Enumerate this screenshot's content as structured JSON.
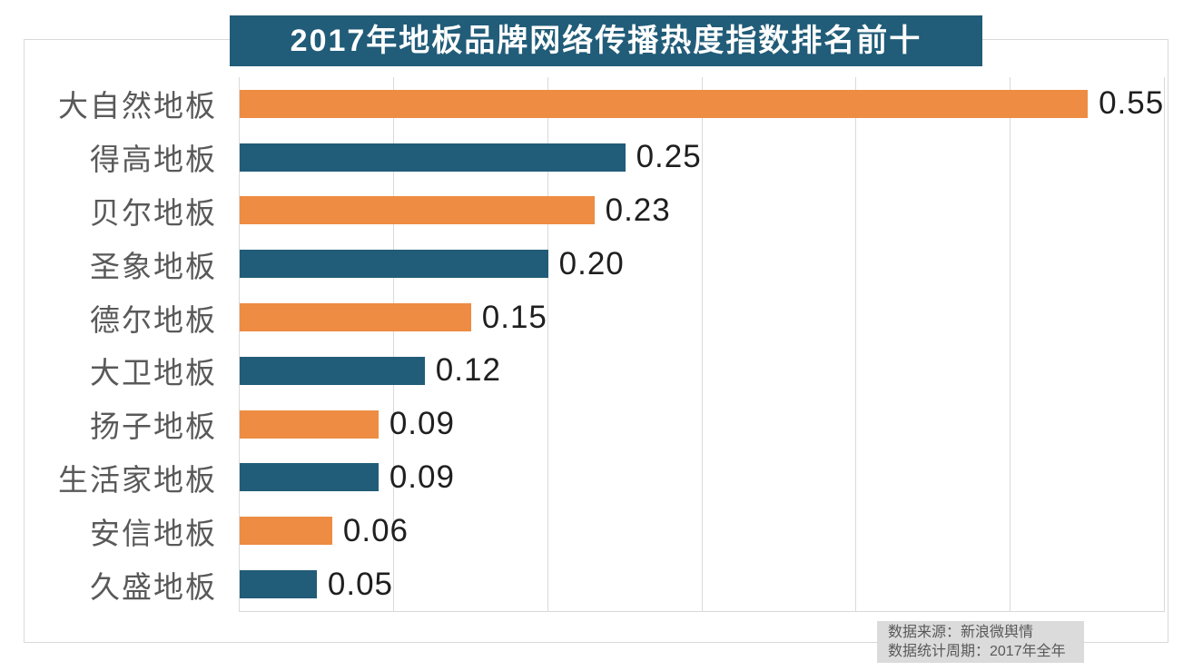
{
  "title": {
    "text": "2017年地板品牌网络传播热度指数排名前十"
  },
  "chart_data": {
    "type": "bar",
    "orientation": "horizontal",
    "title": "2017年地板品牌网络传播热度指数排名前十",
    "categories": [
      "大自然地板",
      "得高地板",
      "贝尔地板",
      "圣象地板",
      "德尔地板",
      "大卫地板",
      "扬子地板",
      "生活家地板",
      "安信地板",
      "久盛地板"
    ],
    "values": [
      0.55,
      0.25,
      0.23,
      0.2,
      0.15,
      0.12,
      0.09,
      0.09,
      0.06,
      0.05
    ],
    "value_labels": [
      "0.55",
      "0.25",
      "0.23",
      "0.20",
      "0.15",
      "0.12",
      "0.09",
      "0.09",
      "0.06",
      "0.05"
    ],
    "xlabel": "",
    "ylabel": "",
    "xlim": [
      0,
      0.6
    ],
    "gridline_interval": 0.1,
    "grid": "vertical-gridlines-only",
    "legend": "none",
    "bar_colors_alternate": [
      "#ED8C42",
      "#215C78"
    ]
  },
  "source": {
    "line1": "数据来源：新浪微舆情",
    "line2": "数据统计周期：2017年全年"
  },
  "colors": {
    "title_background": "#215C78",
    "title_text": "#FFFFFF",
    "bar_orange": "#ED8C42",
    "bar_blue": "#215C78",
    "category_label_text": "#595959",
    "value_label_text": "#1F1F1F",
    "gridline": "#D9D9D9",
    "chart_border": "#D9D9D9",
    "footer_background": "#DBDBDB",
    "footer_text": "#595959"
  }
}
